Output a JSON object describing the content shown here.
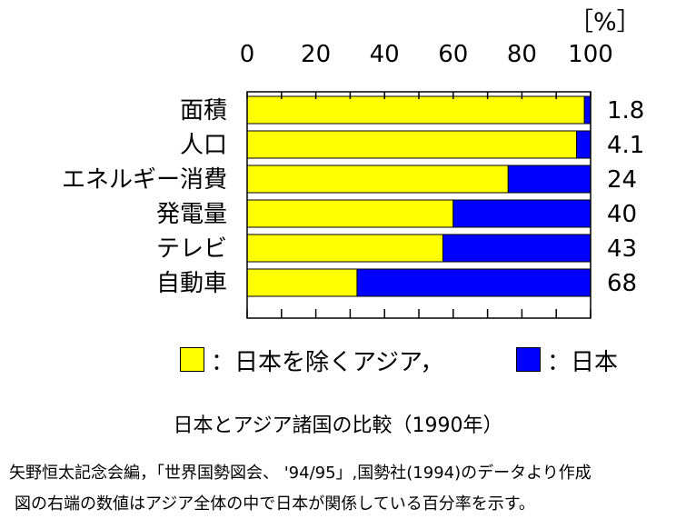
{
  "chart_data": {
    "type": "bar",
    "orientation": "horizontal",
    "stacked": true,
    "unit_label": "［%］",
    "xlim": [
      0,
      100
    ],
    "x_ticks": [
      "0",
      "20",
      "40",
      "60",
      "80",
      "100"
    ],
    "categories": [
      "面積",
      "人口",
      "エネルギー消費",
      "発電量",
      "テレビ",
      "自動車"
    ],
    "series": [
      {
        "name": "日本を除くアジア",
        "color": "#ffff00",
        "values": [
          98.2,
          95.9,
          76,
          60,
          57,
          32
        ]
      },
      {
        "name": "日本",
        "color": "#0000ff",
        "values": [
          1.8,
          4.1,
          24,
          40,
          43,
          68
        ]
      }
    ],
    "right_labels": [
      "1.8",
      "4.1",
      "24",
      "40",
      "43",
      "68"
    ],
    "legend": {
      "placement": "bottom",
      "items": [
        {
          "label": "：日本を除くアジア，",
          "color": "#ffff00"
        },
        {
          "label": "：日本",
          "color": "#0000ff"
        }
      ]
    },
    "title": "日本とアジア諸国の比較（1990年）"
  },
  "footer": {
    "source": "矢野恒太記念会編，「世界国勢図会、 '94/95」,国勢社(1994)のデータより作成",
    "note": "図の右端の数値はアジア全体の中で日本が関係している百分率を示す。"
  }
}
